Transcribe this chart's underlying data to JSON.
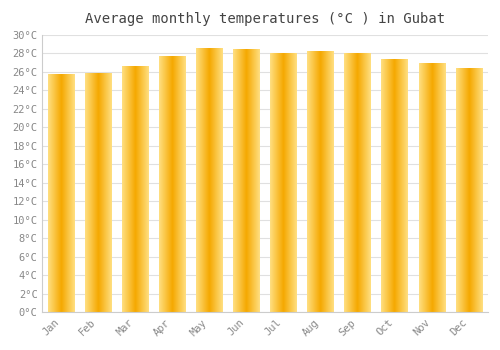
{
  "title": "Average monthly temperatures (°C ) in Gubat",
  "months": [
    "Jan",
    "Feb",
    "Mar",
    "Apr",
    "May",
    "Jun",
    "Jul",
    "Aug",
    "Sep",
    "Oct",
    "Nov",
    "Dec"
  ],
  "values": [
    25.7,
    25.8,
    26.5,
    27.6,
    28.5,
    28.4,
    27.9,
    28.1,
    27.9,
    27.3,
    26.8,
    26.3
  ],
  "bar_color_center": "#F5A800",
  "bar_color_edge": "#FFD966",
  "ylim": [
    0,
    30
  ],
  "ytick_step": 2,
  "background_color": "#ffffff",
  "plot_bg_color": "#ffffff",
  "grid_color": "#e0e0e0",
  "title_fontsize": 10,
  "tick_fontsize": 7.5,
  "font_family": "monospace",
  "title_color": "#444444",
  "tick_color": "#888888"
}
